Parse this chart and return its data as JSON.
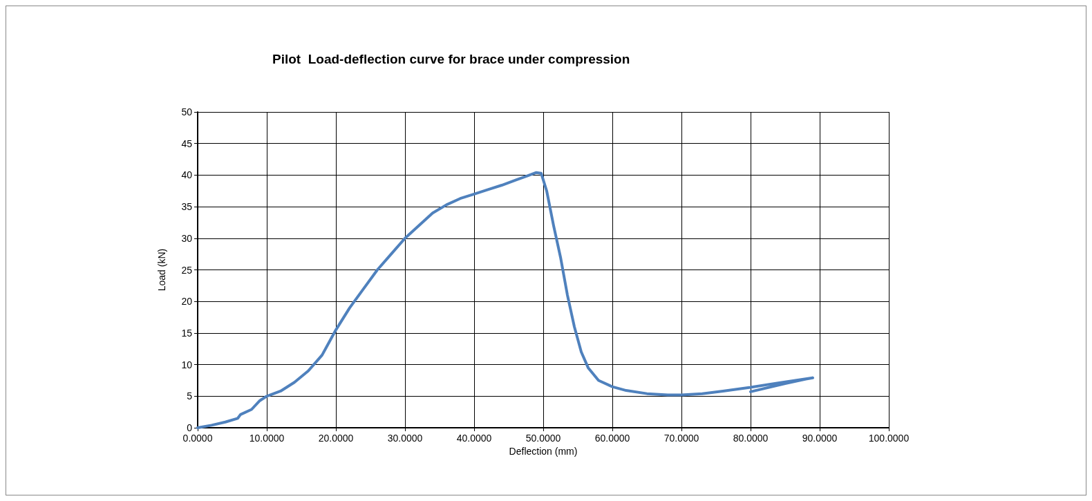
{
  "chart_data": {
    "type": "line",
    "title": "Pilot  Load-deflection curve for brace under compression",
    "xlabel": "Deflection (mm)",
    "ylabel": "Load (kN)",
    "x": [
      0,
      2,
      4,
      5.8,
      6.2,
      7.8,
      9,
      10,
      12,
      14,
      16,
      18,
      20,
      22,
      24,
      26,
      28,
      30,
      32,
      34,
      36,
      38,
      40,
      42,
      44,
      46,
      48,
      49,
      49.7,
      50.5,
      51.5,
      52.5,
      53.5,
      54.5,
      55.5,
      56.5,
      58,
      60,
      62,
      65,
      68,
      70,
      73,
      76,
      80,
      84,
      89,
      88,
      85,
      80
    ],
    "series": [
      {
        "color": "#4f81bd",
        "values": [
          0,
          0.4,
          0.9,
          1.5,
          2.1,
          2.9,
          4.3,
          5,
          5.8,
          7.2,
          9,
          11.5,
          15.5,
          19,
          22,
          25,
          27.5,
          30,
          32,
          34,
          35.3,
          36.3,
          37,
          37.7,
          38.4,
          39.2,
          40,
          40.4,
          40.3,
          37.5,
          32,
          27,
          21,
          16,
          12,
          9.5,
          7.5,
          6.5,
          5.9,
          5.4,
          5.2,
          5.2,
          5.4,
          5.8,
          6.4,
          7.1,
          7.9,
          7.7,
          7,
          5.7
        ]
      }
    ],
    "xlim": [
      0,
      100
    ],
    "xticks": [
      {
        "value": 0,
        "label": "0.0000"
      },
      {
        "value": 10,
        "label": "10.0000"
      },
      {
        "value": 20,
        "label": "20.0000"
      },
      {
        "value": 30,
        "label": "30.0000"
      },
      {
        "value": 40,
        "label": "40.0000"
      },
      {
        "value": 50,
        "label": "50.0000"
      },
      {
        "value": 60,
        "label": "60.0000"
      },
      {
        "value": 70,
        "label": "70.0000"
      },
      {
        "value": 80,
        "label": "80.0000"
      },
      {
        "value": 90,
        "label": "90.0000"
      },
      {
        "value": 100,
        "label": "100.0000"
      }
    ],
    "ylim": [
      0,
      50
    ],
    "yticks": [
      0,
      5,
      10,
      15,
      20,
      25,
      30,
      35,
      40,
      45,
      50
    ],
    "grid": true,
    "marker": "none",
    "line_style": "solid"
  }
}
